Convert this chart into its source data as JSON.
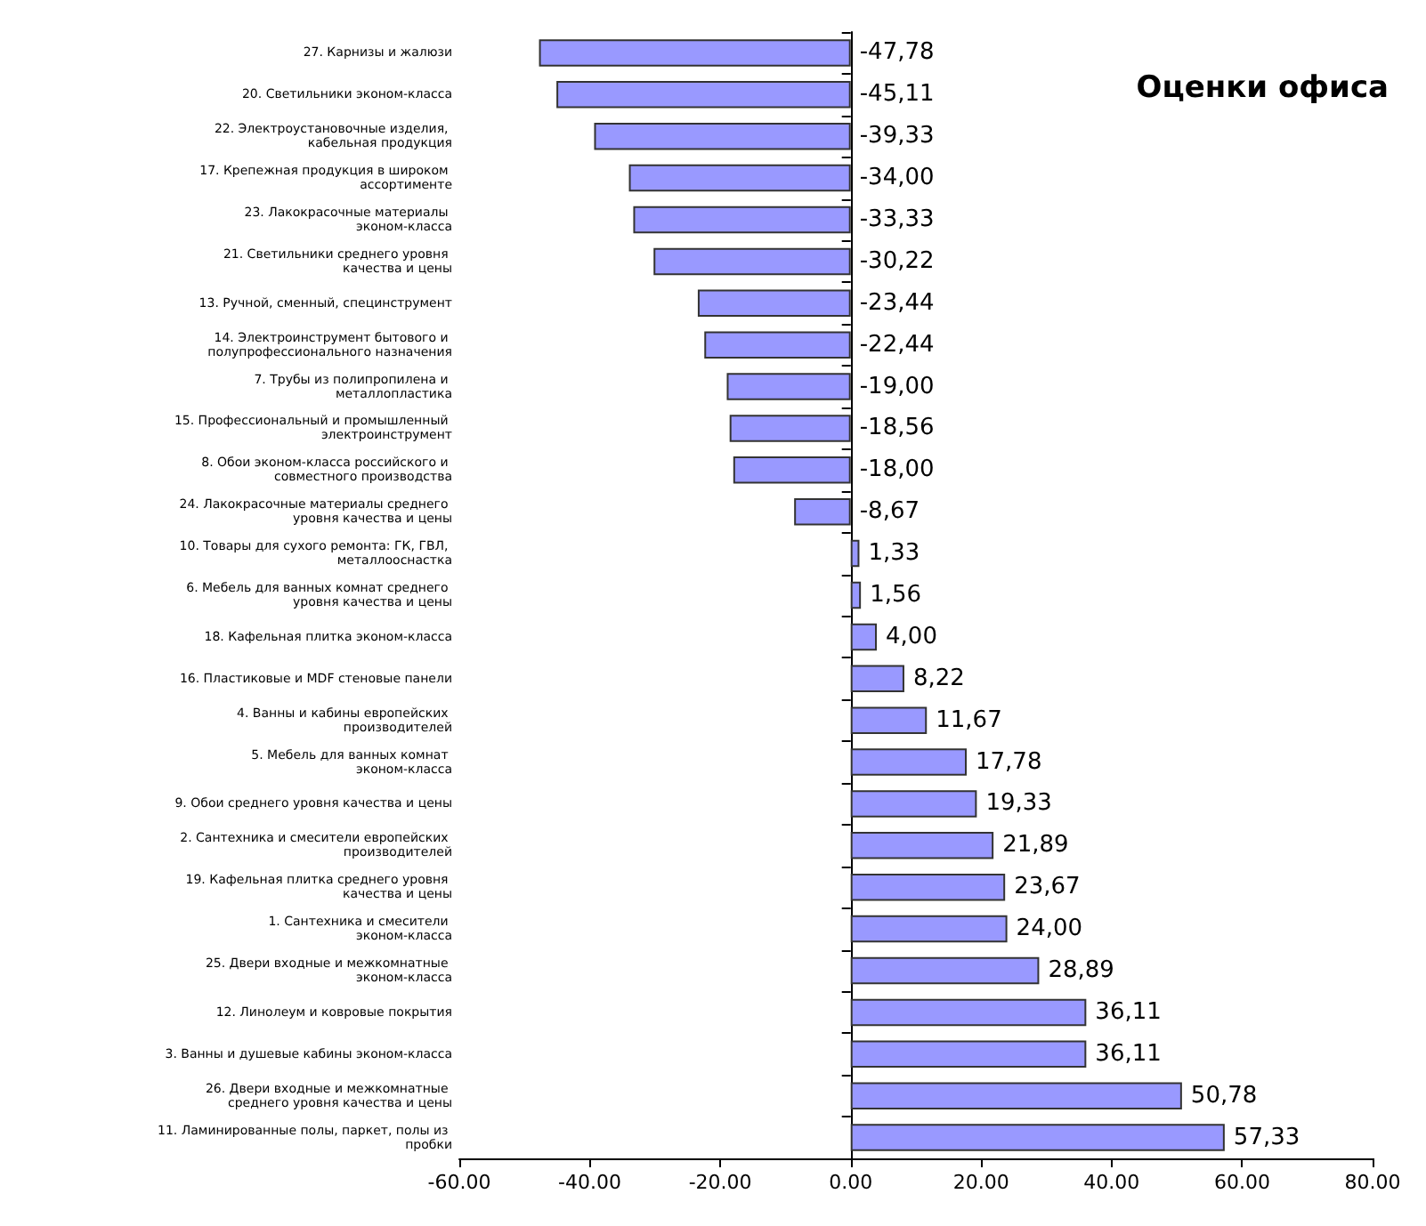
{
  "chart_data": {
    "type": "bar",
    "orientation": "horizontal",
    "title": "Оценки офиса",
    "categories": [
      "27. Карнизы и жалюзи",
      "20. Светильники эконом-класса",
      "22. Электроустановочные изделия, кабельная продукция",
      "17. Крепежная продукция в широком ассортименте",
      "23. Лакокрасочные материалы эконом-класса",
      "21. Светильники среднего уровня качества и цены",
      "13. Ручной, сменный, специнструмент",
      "14. Электроинструмент бытового и полупрофессионального назначения",
      "7. Трубы из полипропилена и металлопластика",
      "15. Профессиональный и промышленный электроинструмент",
      "8. Обои эконом-класса российского и совместного производства",
      "24. Лакокрасочные материалы среднего уровня качества и цены",
      "10. Товары для сухого ремонта: ГК, ГВЛ, металлооснастка",
      "6. Мебель для ванных комнат среднего уровня качества и цены",
      "18. Кафельная плитка эконом-класса",
      "16. Пластиковые и MDF стеновые панели",
      "4. Ванны и кабины европейских производителей",
      "5. Мебель для ванных комнат эконом-класса",
      "9. Обои среднего уровня качества и цены",
      "2. Сантехника и смесители европейских производителей",
      "19. Кафельная плитка среднего уровня качества и цены",
      "1. Сантехника и смесители эконом-класса",
      "25. Двери входные и межкомнатные эконом-класса",
      "12. Линолеум и ковровые покрытия",
      "3. Ванны и душевые кабины эконом-класса",
      "26. Двери входные и межкомнатные среднего уровня качества и цены",
      "11. Ламинированные полы, паркет, полы из пробки"
    ],
    "values": [
      -47.78,
      -45.11,
      -39.33,
      -34.0,
      -33.33,
      -30.22,
      -23.44,
      -22.44,
      -19.0,
      -18.56,
      -18.0,
      -8.67,
      1.33,
      1.56,
      4.0,
      8.22,
      11.67,
      17.78,
      19.33,
      21.89,
      23.67,
      24.0,
      28.89,
      36.11,
      36.11,
      50.78,
      57.33
    ],
    "value_labels": [
      "-47,78",
      "-45,11",
      "-39,33",
      "-34,00",
      "-33,33",
      "-30,22",
      "-23,44",
      "-22,44",
      "-19,00",
      "-18,56",
      "-18,00",
      "-8,67",
      "1,33",
      "1,56",
      "4,00",
      "8,22",
      "11,67",
      "17,78",
      "19,33",
      "21,89",
      "23,67",
      "24,00",
      "28,89",
      "36,11",
      "36,11",
      "50,78",
      "57,33"
    ],
    "color": "#9999ff",
    "xlim": [
      -60,
      80
    ],
    "xticks": [
      {
        "value": -60,
        "label": "-60.00"
      },
      {
        "value": -40,
        "label": "-40.00"
      },
      {
        "value": -20,
        "label": "-20.00"
      },
      {
        "value": 0,
        "label": "0.00"
      },
      {
        "value": 20,
        "label": "20.00"
      },
      {
        "value": 40,
        "label": "40.00"
      },
      {
        "value": 60,
        "label": "60.00"
      },
      {
        "value": 80,
        "label": "80.00"
      }
    ]
  }
}
